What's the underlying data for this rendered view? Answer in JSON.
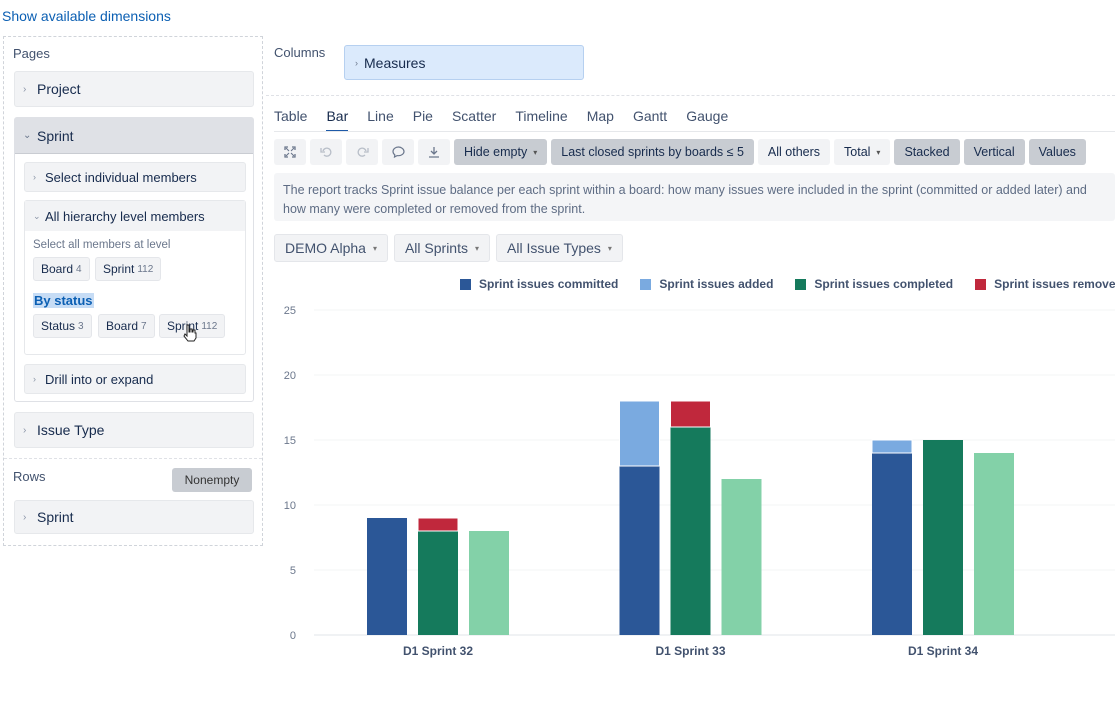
{
  "top_link": "Show available dimensions",
  "pages": {
    "title": "Pages",
    "project_label": "Project",
    "sprint_label": "Sprint",
    "select_individual": "Select individual members",
    "all_hierarchy": "All hierarchy level members",
    "select_all_level": "Select all members at level",
    "chips_row1": [
      {
        "label": "Board",
        "count": "4"
      },
      {
        "label": "Sprint",
        "count": "112"
      }
    ],
    "by_status": "By status",
    "chips_row2": [
      {
        "label": "Status",
        "count": "3"
      },
      {
        "label": "Board",
        "count": "7"
      },
      {
        "label": "Sprint",
        "count": "112"
      }
    ],
    "drill": "Drill into or expand",
    "issue_type": "Issue Type"
  },
  "rows": {
    "title": "Rows",
    "nonempty": "Nonempty",
    "sprint_label": "Sprint"
  },
  "columns": {
    "title": "Columns",
    "measures": "Measures"
  },
  "tabs": [
    {
      "label": "Table",
      "active": false
    },
    {
      "label": "Bar",
      "active": true
    },
    {
      "label": "Line",
      "active": false
    },
    {
      "label": "Pie",
      "active": false
    },
    {
      "label": "Scatter",
      "active": false
    },
    {
      "label": "Timeline",
      "active": false
    },
    {
      "label": "Map",
      "active": false
    },
    {
      "label": "Gantt",
      "active": false
    },
    {
      "label": "Gauge",
      "active": false
    }
  ],
  "toolbar": {
    "hide_empty": "Hide empty",
    "last_closed": "Last closed sprints by boards ≤ 5",
    "all_others": "All others",
    "total": "Total",
    "stacked": "Stacked",
    "vertical": "Vertical",
    "values": "Values"
  },
  "description": "The report tracks Sprint issue balance per each sprint within a board: how many issues were included in the sprint (committed or added later) and how many were completed or removed from the sprint.",
  "filters": [
    {
      "label": "DEMO Alpha"
    },
    {
      "label": "All Sprints"
    },
    {
      "label": "All Issue Types"
    }
  ],
  "colors": {
    "committed": "#2b5797",
    "added": "#7aaae0",
    "completed": "#157a5c",
    "removed": "#c0283c",
    "completed_light": "#83d1a8"
  },
  "chart_data": {
    "type": "bar",
    "stacked": true,
    "categories": [
      "D1 Sprint 32",
      "D1 Sprint 33",
      "D1 Sprint 34"
    ],
    "ylim": [
      0,
      25
    ],
    "yticks": [
      0,
      5,
      10,
      15,
      20,
      25
    ],
    "legend": [
      {
        "name": "Sprint issues committed",
        "color": "#2b5797"
      },
      {
        "name": "Sprint issues added",
        "color": "#7aaae0"
      },
      {
        "name": "Sprint issues completed",
        "color": "#157a5c"
      },
      {
        "name": "Sprint issues removed",
        "color": "#c0283c"
      }
    ],
    "stacks": [
      {
        "segments": [
          {
            "series": "Sprint issues committed",
            "values": [
              9,
              13,
              14
            ]
          },
          {
            "series": "Sprint issues added",
            "values": [
              0,
              5,
              1
            ]
          }
        ]
      },
      {
        "segments": [
          {
            "series": "Sprint issues completed",
            "values": [
              8,
              16,
              15
            ]
          },
          {
            "series": "Sprint issues removed",
            "values": [
              1,
              2,
              0
            ]
          }
        ]
      },
      {
        "segments": [
          {
            "series": "",
            "color": "#83d1a8",
            "values": [
              8,
              12,
              14
            ]
          }
        ]
      }
    ]
  }
}
